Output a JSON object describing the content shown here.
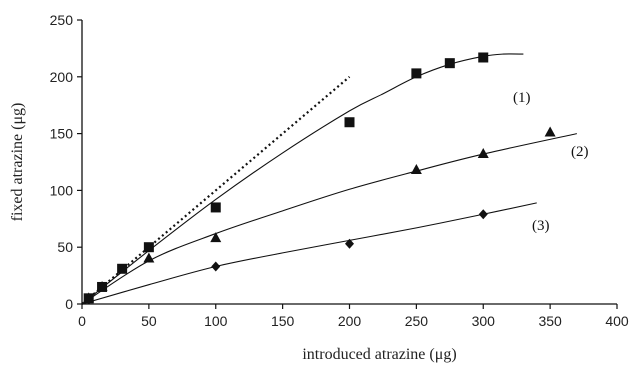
{
  "chart_data": {
    "type": "scatter",
    "title": "",
    "xlabel": "introduced atrazine (μg)",
    "ylabel": "fixed atrazine (μg)",
    "xlim": [
      0,
      400
    ],
    "ylim": [
      0,
      250
    ],
    "xticks": [
      0,
      50,
      100,
      150,
      200,
      250,
      300,
      350,
      400
    ],
    "yticks": [
      0,
      50,
      100,
      150,
      200,
      250
    ],
    "grid": false,
    "legend": "none",
    "series": [
      {
        "label": "(1)",
        "marker": "square",
        "points": [
          [
            5,
            5
          ],
          [
            15,
            15
          ],
          [
            30,
            31
          ],
          [
            50,
            50
          ],
          [
            100,
            85
          ],
          [
            200,
            160
          ],
          [
            250,
            203
          ],
          [
            275,
            212
          ],
          [
            300,
            217
          ]
        ],
        "fit": [
          [
            0,
            0
          ],
          [
            50,
            47
          ],
          [
            100,
            92
          ],
          [
            150,
            133
          ],
          [
            200,
            170
          ],
          [
            225,
            185
          ],
          [
            250,
            200
          ],
          [
            275,
            211
          ],
          [
            300,
            218
          ],
          [
            315,
            220
          ],
          [
            330,
            220
          ]
        ]
      },
      {
        "label": "(2)",
        "marker": "triangle",
        "points": [
          [
            5,
            5
          ],
          [
            15,
            15
          ],
          [
            50,
            40
          ],
          [
            100,
            58
          ],
          [
            250,
            118
          ],
          [
            300,
            132
          ],
          [
            350,
            151
          ]
        ],
        "fit": [
          [
            0,
            0
          ],
          [
            50,
            38
          ],
          [
            100,
            62
          ],
          [
            150,
            82
          ],
          [
            200,
            101
          ],
          [
            250,
            117
          ],
          [
            300,
            132
          ],
          [
            370,
            150
          ]
        ]
      },
      {
        "label": "(3)",
        "marker": "diamond",
        "points": [
          [
            5,
            4
          ],
          [
            100,
            33
          ],
          [
            200,
            53
          ],
          [
            300,
            79
          ]
        ],
        "fit": [
          [
            0,
            0
          ],
          [
            50,
            17
          ],
          [
            100,
            33
          ],
          [
            150,
            45
          ],
          [
            200,
            56
          ],
          [
            250,
            67
          ],
          [
            300,
            79
          ],
          [
            340,
            89
          ]
        ]
      },
      {
        "label": "",
        "marker": "none",
        "style": "dotted",
        "fit": [
          [
            0,
            0
          ],
          [
            200,
            200
          ]
        ]
      }
    ]
  }
}
